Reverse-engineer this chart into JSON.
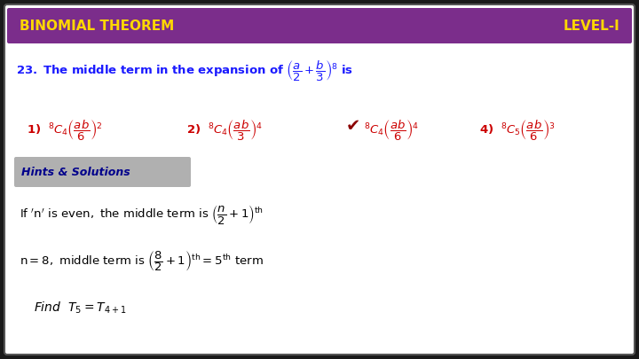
{
  "title_left": "BINOMIAL THEOREM",
  "title_right": "LEVEL-I",
  "title_bg": "#7B2D8B",
  "title_text_color": "#FFD700",
  "border_color": "#1a1a1a",
  "bg_color": "#FFFFFF",
  "outer_bg": "#1a1a1a",
  "question_color": "#1a1aff",
  "answer_color": "#cc0000",
  "hint_bg": "#B0B0B0",
  "hint_text_color": "#00008B",
  "solution_text_color": "#000000",
  "figsize": [
    7.2,
    4.05
  ],
  "dpi": 100
}
